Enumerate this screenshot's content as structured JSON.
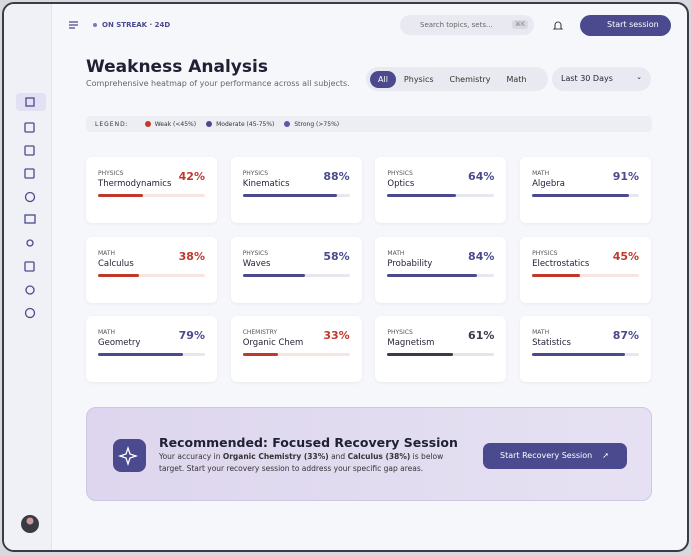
{
  "topbar": {
    "streak": "ON STREAK · 24D",
    "search": "Search topics, sets...",
    "shortcut": "⌘K",
    "button": "Start session"
  },
  "header": {
    "title": "Weakness Analysis",
    "subtitle": "Comprehensive heatmap of your performance across all subjects."
  },
  "filters": {
    "tabs": [
      "All",
      "Physics",
      "Chemistry",
      "Math"
    ],
    "period": "Last 30 Days"
  },
  "legend": {
    "label": "LEGEND:",
    "items": [
      {
        "label": "Weak (<45%)",
        "color": "#c0392b"
      },
      {
        "label": "Moderate (45-75%)",
        "color": "#4b4a8f"
      },
      {
        "label": "Strong (>75%)",
        "color": "#5a59a8"
      }
    ]
  },
  "cards": [
    {
      "subject": "PHYSICS",
      "topic": "Thermodynamics",
      "score": {
        "value": 42,
        "label": "42%"
      },
      "color": "#c0392b"
    },
    {
      "subject": "PHYSICS",
      "topic": "Kinematics",
      "score": {
        "value": 88,
        "label": "88%"
      },
      "color": "#4b4a8f"
    },
    {
      "subject": "PHYSICS",
      "topic": "Optics",
      "score": {
        "value": 64,
        "label": "64%"
      },
      "color": "#4b4a8f"
    },
    {
      "subject": "MATH",
      "topic": "Algebra",
      "score": {
        "value": 91,
        "label": "91%"
      },
      "color": "#4b4a8f"
    },
    {
      "subject": "MATH",
      "topic": "Calculus",
      "score": {
        "value": 38,
        "label": "38%"
      },
      "color": "#c0392b"
    },
    {
      "subject": "PHYSICS",
      "topic": "Waves",
      "score": {
        "value": 58,
        "label": "58%"
      },
      "color": "#4b4a8f"
    },
    {
      "subject": "MATH",
      "topic": "Probability",
      "score": {
        "value": 84,
        "label": "84%"
      },
      "color": "#4b4a8f"
    },
    {
      "subject": "PHYSICS",
      "topic": "Electrostatics",
      "score": {
        "value": 45,
        "label": "45%"
      },
      "color": "#c0392b"
    },
    {
      "subject": "MATH",
      "topic": "Geometry",
      "score": {
        "value": 79,
        "label": "79%"
      },
      "color": "#4b4a8f"
    },
    {
      "subject": "CHEMISTRY",
      "topic": "Organic Chem",
      "score": {
        "value": 33,
        "label": "33%"
      },
      "color": "#c0392b"
    },
    {
      "subject": "PHYSICS",
      "topic": "Magnetism",
      "score": {
        "value": 61,
        "label": "61%"
      },
      "color": "#3a3a4a"
    },
    {
      "subject": "MATH",
      "topic": "Statistics",
      "score": {
        "value": 87,
        "label": "87%"
      },
      "color": "#4b4a8f"
    }
  ],
  "recommendation": {
    "title": "Recommended: Focused Recovery Session",
    "text": [
      "Your accuracy in ",
      "Organic Chemistry (33%)",
      " and ",
      "Calculus (38%)",
      " is below target. Start your recovery session to address your specific gap areas."
    ],
    "button": "Start Recovery Session"
  }
}
